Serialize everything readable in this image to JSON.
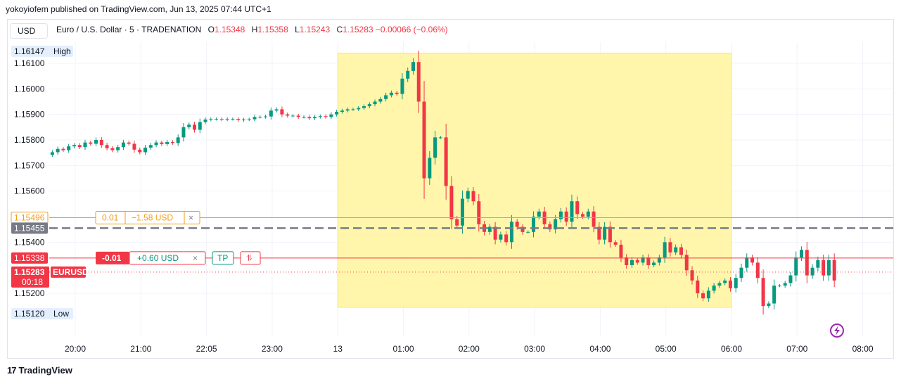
{
  "publisher": "yokoyiofem published on TradingView.com, Jun 13, 2025 07:44 UTC+1",
  "currency_button": "USD",
  "symbol": {
    "name": "Euro / U.S. Dollar · 5 · TRADENATION",
    "o_label": "O",
    "o": "1.15348",
    "h_label": "H",
    "h": "1.15358",
    "l_label": "L",
    "l": "1.15243",
    "c_label": "C",
    "c": "1.15283",
    "change": "−0.00066 (−0.06%)"
  },
  "footer_brand": "TradingView",
  "colors": {
    "up": "#089981",
    "down": "#f23645",
    "highlight": "#fff59d",
    "tp": "#f59c16",
    "entry": "#787b86"
  },
  "chart_data": {
    "type": "candlestick",
    "ylim": [
      1.1512,
      1.1615
    ],
    "y_ticks": [
      "1.16100",
      "1.16000",
      "1.15900",
      "1.15800",
      "1.15700",
      "1.15600",
      "1.15400",
      "1.15200"
    ],
    "x_ticks": [
      "20:00",
      "21:00",
      "22:05",
      "23:00",
      "13",
      "01:00",
      "02:00",
      "03:00",
      "04:00",
      "05:00",
      "06:00",
      "07:00",
      "08:00"
    ],
    "x_ticks_hours": [
      0,
      1,
      2,
      3,
      4,
      5,
      6,
      7,
      8,
      9,
      10,
      11,
      12
    ],
    "first_bar_hour": -0.35,
    "bar_minutes": 5,
    "closes": [
      1.15752,
      1.15765,
      1.1576,
      1.15775,
      1.1578,
      1.15772,
      1.1579,
      1.15785,
      1.158,
      1.1578,
      1.15768,
      1.1576,
      1.15772,
      1.1579,
      1.15785,
      1.15762,
      1.15752,
      1.1577,
      1.1578,
      1.1579,
      1.15784,
      1.15792,
      1.15788,
      1.1581,
      1.1585,
      1.1586,
      1.1584,
      1.1587,
      1.1588,
      1.15882,
      1.15882,
      1.1588,
      1.15882,
      1.15882,
      1.15878,
      1.1588,
      1.15881,
      1.1589,
      1.1589,
      1.15892,
      1.15915,
      1.1592,
      1.159,
      1.15895,
      1.15895,
      1.1589,
      1.1589,
      1.15885,
      1.1589,
      1.15893,
      1.1589,
      1.159,
      1.1591,
      1.15915,
      1.1592,
      1.1592,
      1.15925,
      1.15932,
      1.1594,
      1.1595,
      1.1596,
      1.15975,
      1.15985,
      1.1598,
      1.1604,
      1.1607,
      1.16105,
      1.1595,
      1.1565,
      1.1573,
      1.1581,
      1.1581,
      1.1562,
      1.1549,
      1.15465,
      1.1557,
      1.156,
      1.1556,
      1.1547,
      1.1544,
      1.1546,
      1.1541,
      1.1543,
      1.154,
      1.1548,
      1.1546,
      1.1544,
      1.1544,
      1.155,
      1.1552,
      1.1547,
      1.1545,
      1.1549,
      1.1552,
      1.1548,
      1.1556,
      1.1551,
      1.155,
      1.1552,
      1.1546,
      1.1541,
      1.1546,
      1.154,
      1.1539,
      1.1534,
      1.1531,
      1.1533,
      1.1532,
      1.1534,
      1.1531,
      1.1532,
      1.1534,
      1.154,
      1.1536,
      1.1538,
      1.1535,
      1.1529,
      1.1525,
      1.152,
      1.1518,
      1.1521,
      1.1523,
      1.1524,
      1.1525,
      1.1522,
      1.1526,
      1.153,
      1.1534,
      1.1532,
      1.1526,
      1.1515,
      1.1516,
      1.1523,
      1.1523,
      1.1524,
      1.1527,
      1.1534,
      1.1537,
      1.1527,
      1.153,
      1.1533,
      1.1527,
      1.1533,
      1.1525
    ],
    "high_label": "High",
    "high_value": "1.16147",
    "low_label": "Low",
    "low_value": "1.15120",
    "highlight_zone": {
      "from_hour": 4.0,
      "to_hour": 10.0,
      "y_top": 1.1614,
      "y_bottom": 1.15145
    },
    "take_profit": {
      "price": 1.15496,
      "price_label": "1.15496",
      "qty": "0.01",
      "pl": "−1.58 USD",
      "close": "×"
    },
    "entry": {
      "price": 1.15455,
      "price_label": "1.15455"
    },
    "position": {
      "price": 1.15338,
      "price_label": "1.15338",
      "qty": "-0.01",
      "pl": "+0.60 USD",
      "close": "×",
      "tp": "TP",
      "reverse": "⥮"
    },
    "last": {
      "price": 1.15283,
      "price_label": "1.15283",
      "countdown": "00:18",
      "symbol": "EURUSD"
    }
  }
}
